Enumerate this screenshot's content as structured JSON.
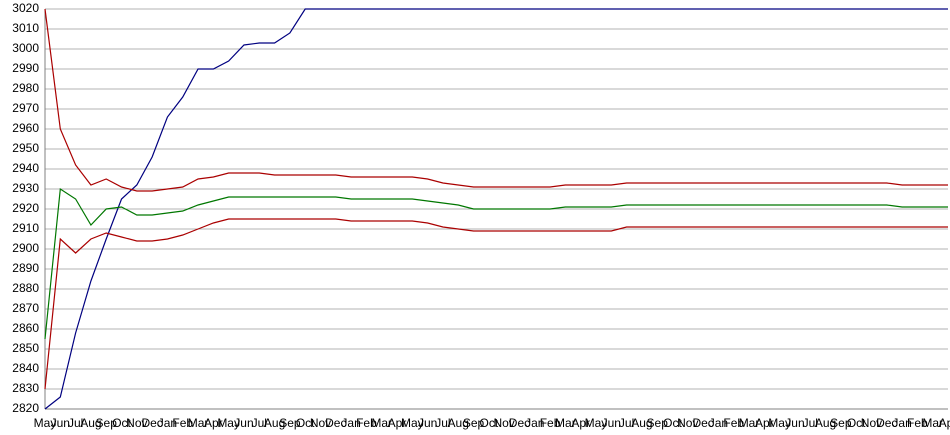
{
  "chart_data": {
    "type": "line",
    "categories": [
      "May",
      "Jun",
      "Jul",
      "Aug",
      "Sep",
      "Oct",
      "Nov",
      "Dec",
      "Jan",
      "Feb",
      "Mar",
      "Apr",
      "May",
      "Jun",
      "Jul",
      "Aug",
      "Sep",
      "Oct",
      "Nov",
      "Dec",
      "Jan",
      "Feb",
      "Mar",
      "Apr",
      "May",
      "Jun",
      "Jul",
      "Aug",
      "Sep",
      "Oct",
      "Nov",
      "Dec",
      "Jan",
      "Feb",
      "Mar",
      "Apr",
      "May",
      "Jun",
      "Jul",
      "Aug",
      "Sep",
      "Oct",
      "Nov",
      "Dec",
      "Jan",
      "Feb",
      "Mar",
      "Apr",
      "May",
      "Jun",
      "Jul",
      "Aug",
      "Sep",
      "Oct",
      "Nov",
      "Dec",
      "Jan",
      "Feb",
      "Mar",
      "Apr"
    ],
    "series": [
      {
        "color": "#000080",
        "values": [
          2820,
          2826,
          2858,
          2884,
          2905,
          2925,
          2932,
          2946,
          2966,
          2976,
          2990,
          2990,
          2994,
          3002,
          3003,
          3003,
          3008,
          3020,
          3020,
          3020,
          3020,
          3020,
          3020,
          3020,
          3020,
          3020,
          3020,
          3020,
          3020,
          3020,
          3020,
          3020,
          3020,
          3020,
          3020,
          3020,
          3020,
          3020,
          3020,
          3020,
          3020,
          3020,
          3020,
          3020,
          3020,
          3020,
          3020,
          3020,
          3020,
          3020,
          3020,
          3020,
          3020,
          3020,
          3020,
          3020,
          3020,
          3020,
          3020,
          3020
        ]
      },
      {
        "color": "#aa0000",
        "values": [
          3020,
          2960,
          2942,
          2932,
          2935,
          2931,
          2929,
          2929,
          2930,
          2931,
          2935,
          2936,
          2938,
          2938,
          2938,
          2937,
          2937,
          2937,
          2937,
          2937,
          2936,
          2936,
          2936,
          2936,
          2936,
          2935,
          2933,
          2932,
          2931,
          2931,
          2931,
          2931,
          2931,
          2931,
          2932,
          2932,
          2932,
          2932,
          2933,
          2933,
          2933,
          2933,
          2933,
          2933,
          2933,
          2933,
          2933,
          2933,
          2933,
          2933,
          2933,
          2933,
          2933,
          2933,
          2933,
          2933,
          2932,
          2932,
          2932,
          2932
        ]
      },
      {
        "color": "#007700",
        "values": [
          2855,
          2930,
          2925,
          2912,
          2920,
          2921,
          2917,
          2917,
          2918,
          2919,
          2922,
          2924,
          2926,
          2926,
          2926,
          2926,
          2926,
          2926,
          2926,
          2926,
          2925,
          2925,
          2925,
          2925,
          2925,
          2924,
          2923,
          2922,
          2920,
          2920,
          2920,
          2920,
          2920,
          2920,
          2921,
          2921,
          2921,
          2921,
          2922,
          2922,
          2922,
          2922,
          2922,
          2922,
          2922,
          2922,
          2922,
          2922,
          2922,
          2922,
          2922,
          2922,
          2922,
          2922,
          2922,
          2922,
          2921,
          2921,
          2921,
          2921
        ]
      },
      {
        "color": "#aa0000",
        "values": [
          2830,
          2905,
          2898,
          2905,
          2908,
          2906,
          2904,
          2904,
          2905,
          2907,
          2910,
          2913,
          2915,
          2915,
          2915,
          2915,
          2915,
          2915,
          2915,
          2915,
          2914,
          2914,
          2914,
          2914,
          2914,
          2913,
          2911,
          2910,
          2909,
          2909,
          2909,
          2909,
          2909,
          2909,
          2909,
          2909,
          2909,
          2909,
          2911,
          2911,
          2911,
          2911,
          2911,
          2911,
          2911,
          2911,
          2911,
          2911,
          2911,
          2911,
          2911,
          2911,
          2911,
          2911,
          2911,
          2911,
          2911,
          2911,
          2911,
          2911
        ]
      }
    ],
    "ylim": [
      2820,
      3020
    ],
    "yticks": [
      2820,
      2830,
      2840,
      2850,
      2860,
      2870,
      2880,
      2890,
      2900,
      2910,
      2920,
      2930,
      2940,
      2950,
      2960,
      2970,
      2980,
      2990,
      3000,
      3010,
      3020
    ],
    "grid": true
  }
}
